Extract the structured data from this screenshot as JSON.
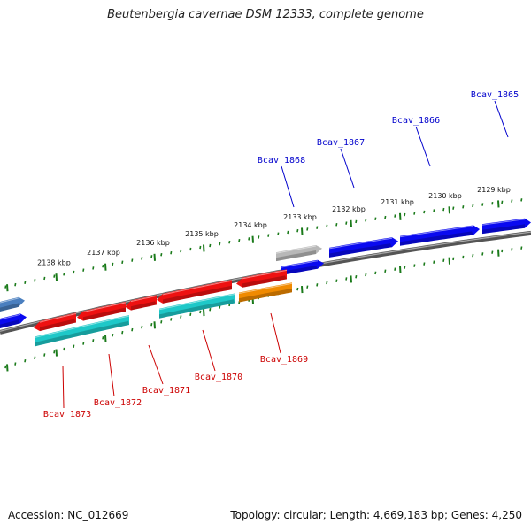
{
  "title": "Beutenbergia cavernae DSM 12333, complete genome",
  "accession": "Accession: NC_012669",
  "summary": "Topology: circular; Length: 4,669,183 bp; Genes: 4,250",
  "colors": {
    "forward_gene": "#0a0af0",
    "reverse_gene": "#ee1111",
    "cds_cyan": "#1ec8c8",
    "cds_orange": "#f08a00",
    "pseudo_gray": "#b8b8b8",
    "steelblue": "#4a7fbf",
    "backbone": "#777777",
    "ticks": "#1a7a1a",
    "forward_label": "#0000cc",
    "reverse_label": "#cc0000"
  },
  "tick_labels": [
    "2129 kbp",
    "2130 kbp",
    "2131 kbp",
    "2132 kbp",
    "2133 kbp",
    "2134 kbp",
    "2135 kbp",
    "2136 kbp",
    "2137 kbp",
    "2138 kbp"
  ],
  "forward_genes": [
    "Bcav_1865",
    "Bcav_1866",
    "Bcav_1867",
    "Bcav_1868"
  ],
  "reverse_genes": [
    "Bcav_1869",
    "Bcav_1870",
    "Bcav_1871",
    "Bcav_1872",
    "Bcav_1873"
  ]
}
